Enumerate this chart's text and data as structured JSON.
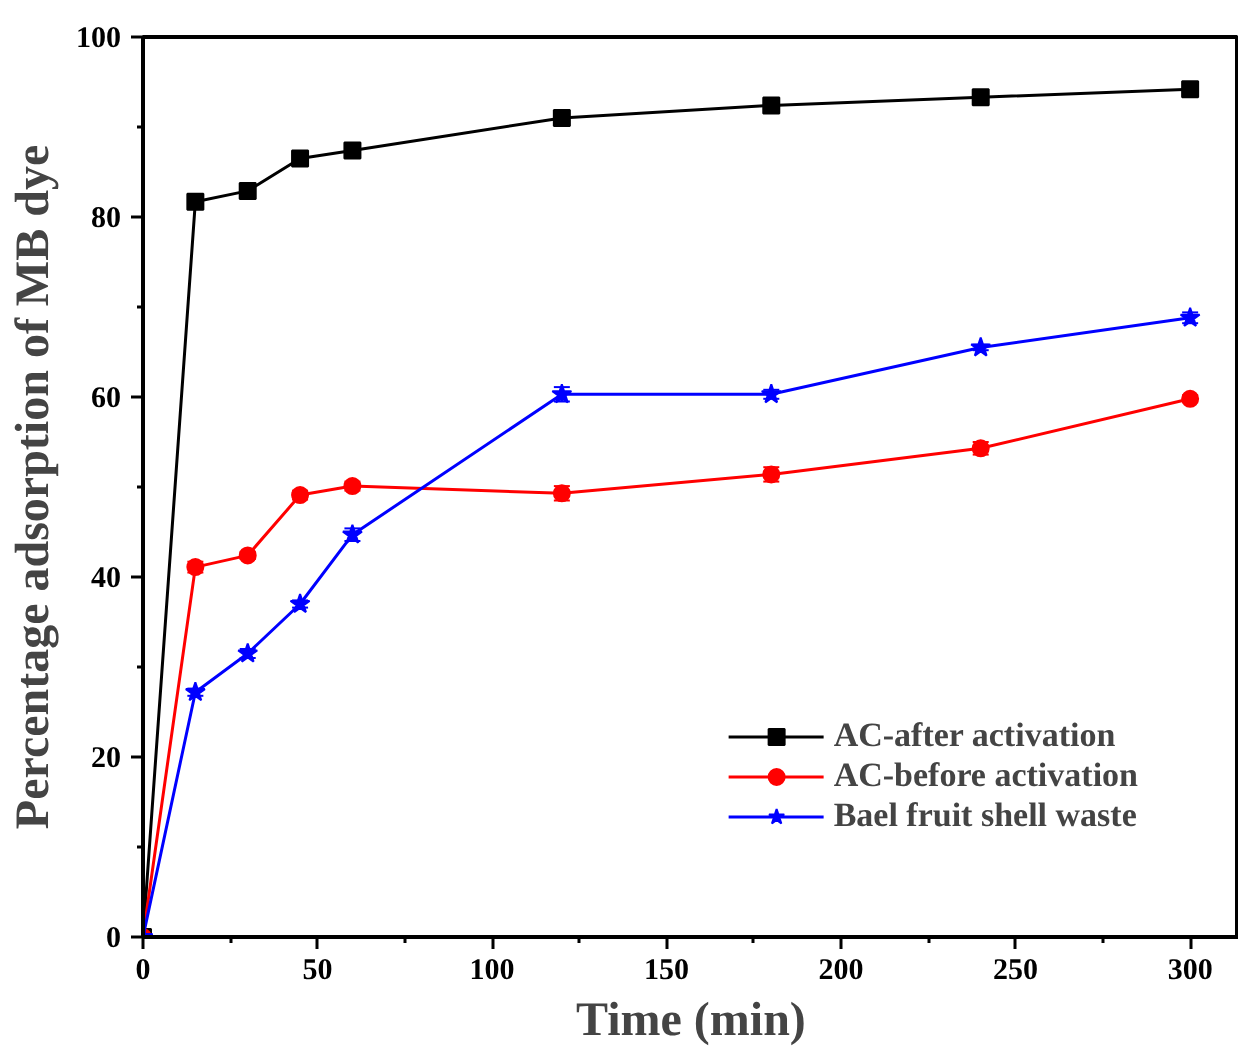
{
  "chart_data": {
    "type": "line",
    "xlabel": "Time (min)",
    "ylabel": "Percentage adsorption of MB dye",
    "x": [
      0,
      15,
      30,
      45,
      60,
      120,
      180,
      240,
      300
    ],
    "xlim": [
      0,
      314
    ],
    "xticks": [
      0,
      50,
      100,
      150,
      200,
      250,
      300
    ],
    "ylim": [
      0,
      100
    ],
    "yticks": [
      0,
      20,
      40,
      60,
      80,
      100
    ],
    "grid": false,
    "legend": "bottom right",
    "line_style": "solid",
    "series": [
      {
        "name": "AC-after activation",
        "color": "#000000",
        "marker": "square",
        "values": [
          0,
          81.7,
          82.9,
          86.5,
          87.4,
          91.0,
          92.4,
          93.3,
          94.2
        ],
        "errors": [
          0.3,
          0.4,
          0.6,
          0.6,
          0.6,
          0.6,
          0.6,
          0.4,
          0.4
        ]
      },
      {
        "name": "AC-before activation",
        "color": "#ff0000",
        "marker": "circle",
        "values": [
          0,
          41.1,
          42.4,
          49.1,
          50.1,
          49.3,
          51.4,
          54.3,
          59.8
        ],
        "errors": [
          0.3,
          0.6,
          0.4,
          0.5,
          0.5,
          0.8,
          0.8,
          0.7,
          0.4
        ]
      },
      {
        "name": "Bael fruit shell waste",
        "color": "#0000ff",
        "marker": "star",
        "values": [
          0,
          27.2,
          31.5,
          37.0,
          44.7,
          60.3,
          60.3,
          65.5,
          68.8
        ],
        "errors": [
          0.3,
          0.4,
          0.5,
          0.4,
          0.7,
          0.8,
          0.5,
          0.3,
          0.6
        ]
      }
    ]
  }
}
